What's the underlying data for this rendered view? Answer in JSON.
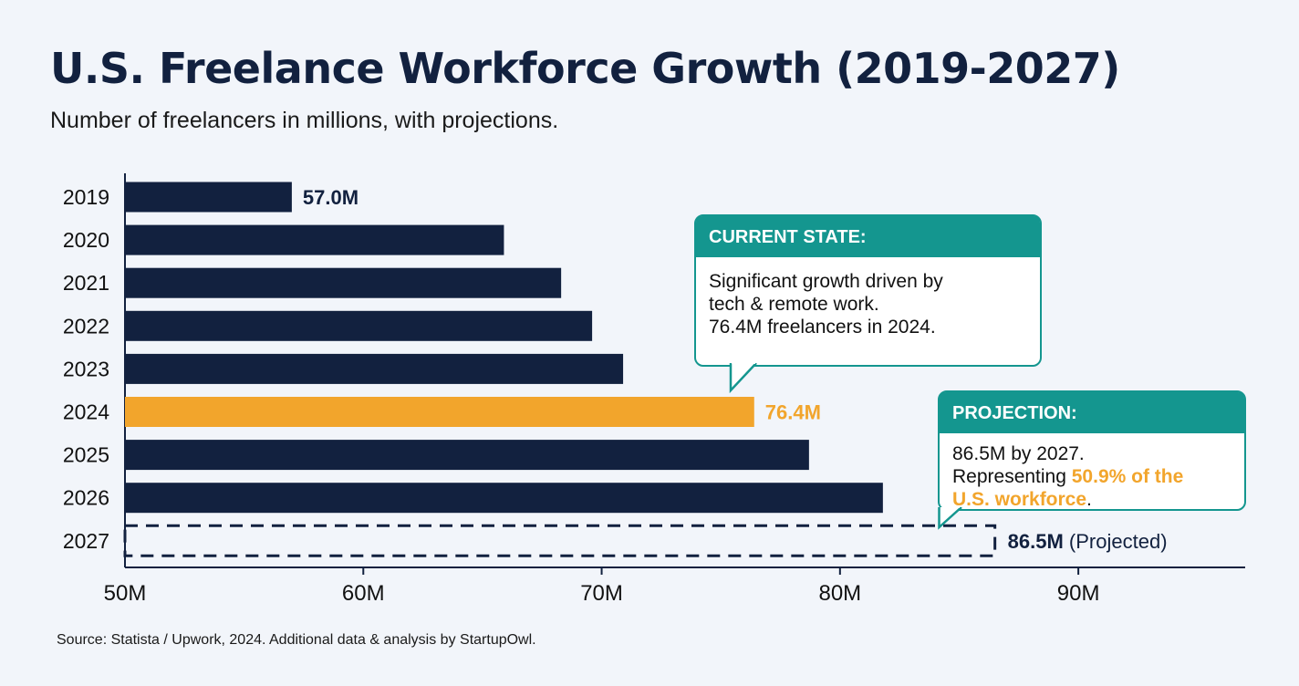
{
  "title": "U.S. Freelance Workforce Growth (2019-2027)",
  "subtitle": "Number of freelancers in millions, with projections.",
  "source": "Source: Statista / Upwork, 2024. Additional data & analysis by StartupOwl.",
  "colors": {
    "bar": "#12213f",
    "highlight": "#f2a52c",
    "projected_outline": "#12213f",
    "callout": "#14968f"
  },
  "chart_data": {
    "type": "bar",
    "orientation": "horizontal",
    "categories": [
      "2019",
      "2020",
      "2021",
      "2022",
      "2023",
      "2024",
      "2025",
      "2026",
      "2027"
    ],
    "values": [
      57.0,
      65.9,
      68.3,
      69.6,
      70.9,
      76.4,
      78.7,
      81.8,
      86.5
    ],
    "highlight": "2024",
    "projected": "2027",
    "data_labels": {
      "2019": "57.0M",
      "2024": "76.4M",
      "2027": "86.5M"
    },
    "projected_suffix": "(Projected)",
    "xticks": [
      "50M",
      "60M",
      "70M",
      "80M",
      "90M"
    ],
    "xtick_values": [
      50,
      60,
      70,
      80,
      90
    ],
    "xlim": [
      50,
      97
    ],
    "grid": false
  },
  "callouts": [
    {
      "heading": "CURRENT STATE:",
      "lines": [
        "Significant growth driven by",
        "tech & remote work.",
        "76.4M freelancers in 2024."
      ]
    },
    {
      "heading": "PROJECTION:",
      "line1": "86.5M by 2027.",
      "line2_pre": "Representing ",
      "line2_hl": "50.9% of the",
      "line3_hl": "U.S. workforce",
      "line3_post": "."
    }
  ]
}
